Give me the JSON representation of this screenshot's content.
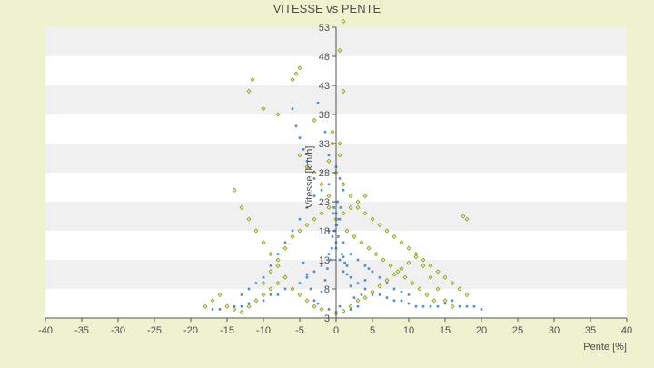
{
  "chart_data": {
    "type": "scatter",
    "title": "VITESSE vs PENTE",
    "xlabel": "Pente [%]",
    "ylabel": "Vitesse [km/h]",
    "xlim": [
      -40,
      40
    ],
    "ylim": [
      3,
      53
    ],
    "x_ticks": [
      "-40",
      "-35",
      "-30",
      "-25",
      "-20",
      "-15",
      "-10",
      "-5",
      "0",
      "5",
      "10",
      "15",
      "20",
      "25",
      "30",
      "35",
      "40"
    ],
    "y_ticks": [
      "3",
      "8",
      "13",
      "18",
      "23",
      "28",
      "33",
      "38",
      "43",
      "48",
      "53"
    ],
    "x_tick_values": [
      -40,
      -35,
      -30,
      -25,
      -20,
      -15,
      -10,
      -5,
      0,
      5,
      10,
      15,
      20,
      25,
      30,
      35,
      40
    ],
    "y_tick_values": [
      3,
      8,
      13,
      18,
      23,
      28,
      33,
      38,
      43,
      48,
      53
    ],
    "grid": "horizontal alternating bands",
    "legend": "none",
    "colors": {
      "series_a": "#4a90d9",
      "series_b": "#8a9a1e",
      "background": "#eef2cf",
      "band_light": "#ffffff",
      "band_dark": "#f0f0f0",
      "axis": "#555555"
    },
    "series": [
      {
        "color": "#4a90d9",
        "points": [
          [
            -1,
            18
          ],
          [
            0,
            19
          ],
          [
            0.5,
            20
          ],
          [
            -0.5,
            17
          ],
          [
            1,
            16
          ],
          [
            0,
            15
          ],
          [
            -1,
            14
          ],
          [
            0.5,
            13
          ],
          [
            1.5,
            12
          ],
          [
            0,
            21
          ],
          [
            -0.3,
            22
          ],
          [
            0.2,
            23
          ],
          [
            1,
            11
          ],
          [
            2,
            10
          ],
          [
            3,
            9
          ],
          [
            4,
            8
          ],
          [
            5,
            7
          ],
          [
            6,
            7
          ],
          [
            7,
            6.5
          ],
          [
            8,
            6
          ],
          [
            9,
            6
          ],
          [
            10,
            5.5
          ],
          [
            11,
            5
          ],
          [
            12,
            5
          ],
          [
            13,
            5
          ],
          [
            14,
            5
          ],
          [
            15,
            5.5
          ],
          [
            16,
            6
          ],
          [
            17,
            5
          ],
          [
            18,
            5
          ],
          [
            19,
            5
          ],
          [
            20,
            4.5
          ],
          [
            -2,
            12
          ],
          [
            -3,
            11
          ],
          [
            -4,
            10
          ],
          [
            -5,
            9
          ],
          [
            -6,
            8
          ],
          [
            -7,
            8
          ],
          [
            -8,
            7
          ],
          [
            -9,
            7
          ],
          [
            -10,
            6
          ],
          [
            -11,
            6
          ],
          [
            -12,
            5.5
          ],
          [
            -13,
            5
          ],
          [
            -14,
            5
          ],
          [
            -15,
            5
          ],
          [
            -16,
            4.5
          ],
          [
            -17,
            4.5
          ],
          [
            -2,
            25
          ],
          [
            -3,
            27
          ],
          [
            -4,
            30
          ],
          [
            -4.5,
            32
          ],
          [
            -5,
            34
          ],
          [
            -5.5,
            36
          ],
          [
            -6,
            39
          ],
          [
            -2.5,
            40
          ],
          [
            -3,
            37
          ],
          [
            -1.5,
            35
          ],
          [
            -2,
            33
          ],
          [
            -1,
            31
          ],
          [
            0,
            29
          ],
          [
            0.5,
            27
          ],
          [
            1,
            25
          ],
          [
            -1,
            26
          ],
          [
            -2,
            28
          ],
          [
            -3,
            24
          ],
          [
            -4,
            22
          ],
          [
            -5,
            20
          ],
          [
            -6,
            18
          ],
          [
            -7,
            16
          ],
          [
            -8,
            14
          ],
          [
            -9,
            12
          ],
          [
            -10,
            10
          ],
          [
            -11,
            9
          ],
          [
            -12,
            8
          ],
          [
            -13,
            7
          ],
          [
            0,
            4
          ],
          [
            1,
            4
          ],
          [
            2,
            4.5
          ],
          [
            -1,
            4.5
          ],
          [
            0.5,
            5
          ],
          [
            1,
            13.5
          ],
          [
            2,
            14
          ],
          [
            3,
            13
          ],
          [
            4,
            12
          ],
          [
            5,
            11
          ],
          [
            6,
            10
          ],
          [
            7,
            9
          ],
          [
            8,
            8
          ],
          [
            9,
            7.5
          ],
          [
            10,
            7
          ],
          [
            0,
            16
          ],
          [
            0.3,
            17
          ],
          [
            -0.2,
            18
          ],
          [
            0.1,
            19
          ],
          [
            0.4,
            20
          ],
          [
            -0.4,
            21
          ],
          [
            0.6,
            22
          ],
          [
            -0.6,
            15
          ],
          [
            0.8,
            14
          ],
          [
            -0.8,
            13
          ],
          [
            1.2,
            12.5
          ],
          [
            -1.2,
            11.5
          ],
          [
            1.5,
            10.5
          ],
          [
            -1.5,
            9.5
          ],
          [
            2,
            8.5
          ],
          [
            -2,
            7.5
          ],
          [
            2.5,
            6.5
          ],
          [
            -2.5,
            5.5
          ],
          [
            3,
            5
          ],
          [
            -3,
            6
          ],
          [
            3.5,
            7
          ],
          [
            -3.5,
            8
          ],
          [
            4,
            9.5
          ],
          [
            -4,
            10.5
          ],
          [
            4.5,
            11.5
          ],
          [
            -4.5,
            12.5
          ]
        ]
      },
      {
        "color": "#8a9a1e",
        "points": [
          [
            -12,
            42
          ],
          [
            -11.5,
            44
          ],
          [
            -10,
            39
          ],
          [
            -8,
            38
          ],
          [
            -6,
            44
          ],
          [
            -5,
            46
          ],
          [
            -5.5,
            45
          ],
          [
            -3,
            37
          ],
          [
            1,
            42
          ],
          [
            0.5,
            49
          ],
          [
            1,
            54
          ],
          [
            -0.5,
            33
          ],
          [
            0.5,
            31
          ],
          [
            -1,
            30
          ],
          [
            0,
            28
          ],
          [
            1,
            26
          ],
          [
            2,
            24
          ],
          [
            3,
            22
          ],
          [
            4,
            21
          ],
          [
            5,
            20
          ],
          [
            6,
            19
          ],
          [
            7,
            18
          ],
          [
            8,
            17
          ],
          [
            9,
            16
          ],
          [
            10,
            15
          ],
          [
            11,
            14
          ],
          [
            12,
            13
          ],
          [
            13,
            12
          ],
          [
            14,
            11
          ],
          [
            15,
            10
          ],
          [
            16,
            9
          ],
          [
            17,
            8
          ],
          [
            18,
            7
          ],
          [
            18,
            20
          ],
          [
            17.5,
            20.5
          ],
          [
            -14,
            25
          ],
          [
            -13,
            22
          ],
          [
            -12,
            20
          ],
          [
            -11,
            18
          ],
          [
            -10,
            16
          ],
          [
            -9,
            14
          ],
          [
            -8,
            12
          ],
          [
            -7,
            10
          ],
          [
            -6,
            8
          ],
          [
            -5,
            7
          ],
          [
            -4,
            6
          ],
          [
            -3,
            5
          ],
          [
            -2,
            4.5
          ],
          [
            -18,
            5
          ],
          [
            -17,
            6
          ],
          [
            -16,
            7
          ],
          [
            -15,
            5
          ],
          [
            -14,
            4.5
          ],
          [
            -13,
            4
          ],
          [
            -12,
            5
          ],
          [
            -11,
            6
          ],
          [
            -10,
            7
          ],
          [
            -9,
            8
          ],
          [
            -8,
            9
          ],
          [
            -7,
            10
          ],
          [
            0,
            3.8
          ],
          [
            1,
            4.2
          ],
          [
            2,
            5
          ],
          [
            3,
            6
          ],
          [
            4,
            6.5
          ],
          [
            5,
            7.5
          ],
          [
            6,
            8.5
          ],
          [
            7,
            9.5
          ],
          [
            8,
            10.5
          ],
          [
            9,
            11.5
          ],
          [
            10,
            12.5
          ],
          [
            11,
            13.5
          ],
          [
            12,
            12
          ],
          [
            13,
            10
          ],
          [
            14,
            8
          ],
          [
            15,
            6
          ],
          [
            16,
            5
          ],
          [
            -1,
            22
          ],
          [
            -2,
            21
          ],
          [
            -3,
            20
          ],
          [
            -4,
            19
          ],
          [
            -5,
            18
          ],
          [
            -6,
            17
          ],
          [
            -7,
            15
          ],
          [
            -8,
            13
          ],
          [
            -9,
            11
          ],
          [
            -10,
            9
          ],
          [
            0,
            20
          ],
          [
            1,
            21
          ],
          [
            2,
            22
          ],
          [
            3,
            23
          ],
          [
            4,
            24
          ],
          [
            -1,
            24
          ],
          [
            -2,
            26
          ],
          [
            -3,
            28
          ],
          [
            -4,
            29
          ],
          [
            -5,
            31
          ],
          [
            0.5,
            33
          ],
          [
            -0.5,
            35
          ],
          [
            1.5,
            18
          ],
          [
            2.5,
            17
          ],
          [
            3.5,
            16
          ],
          [
            4.5,
            15
          ],
          [
            5.5,
            14
          ],
          [
            6.5,
            13
          ],
          [
            7.5,
            12
          ],
          [
            8.5,
            11
          ],
          [
            9.5,
            10
          ],
          [
            10.5,
            9
          ],
          [
            11.5,
            8
          ],
          [
            12.5,
            7
          ],
          [
            13.5,
            6
          ]
        ]
      }
    ]
  }
}
